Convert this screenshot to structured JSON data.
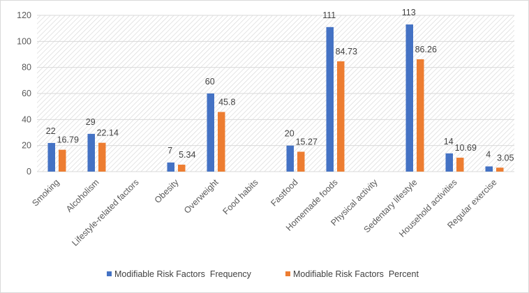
{
  "chart_data": {
    "type": "bar",
    "title": "",
    "xlabel": "",
    "ylabel": "",
    "ylim": [
      0,
      120
    ],
    "yticks": [
      0,
      20,
      40,
      60,
      80,
      100,
      120
    ],
    "grid": true,
    "legend_position": "bottom",
    "categories": [
      "Smoking",
      "Alcoholism",
      "Lifestyle-related factors",
      "Obesity",
      "Overweight",
      "Food habits",
      "Fastfood",
      "Homemade foods",
      "Physical activity",
      "Sedentary lifestyle",
      "Household activities",
      "Regular exercise"
    ],
    "series": [
      {
        "name": "Modifiable Risk Factors  Frequency",
        "color": "#4472c4",
        "values": [
          22,
          29,
          null,
          7,
          60,
          null,
          20,
          111,
          null,
          113,
          14,
          4
        ]
      },
      {
        "name": "Modifiable Risk Factors  Percent",
        "color": "#ed7d31",
        "values": [
          16.79,
          22.14,
          null,
          5.34,
          45.8,
          null,
          15.27,
          84.73,
          null,
          86.26,
          10.69,
          3.05
        ]
      }
    ]
  }
}
